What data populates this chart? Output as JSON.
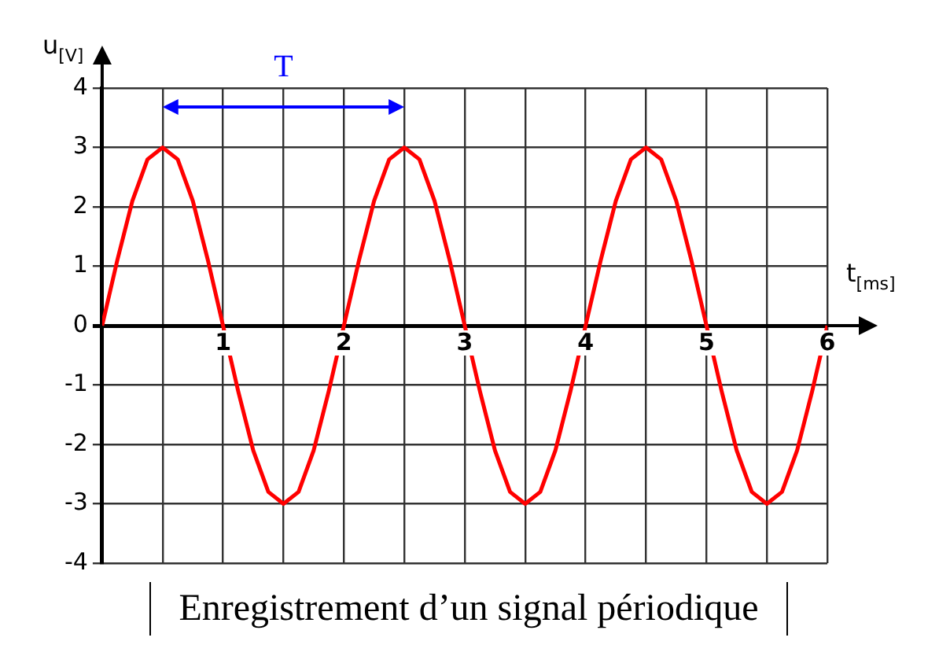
{
  "chart_data": {
    "type": "line",
    "xlabel": "t$_{[ms]}$",
    "ylabel": "u$_{[V]}$",
    "annotations": [
      "T",
      "Enregistrement d’un signal périodique"
    ],
    "x": [
      0,
      0.125,
      0.25,
      0.375,
      0.5,
      0.625,
      0.75,
      0.875,
      1,
      1.125,
      1.25,
      1.375,
      1.5,
      1.625,
      1.75,
      1.875,
      2,
      2.125,
      2.25,
      2.375,
      2.5,
      2.625,
      2.75,
      2.875,
      3,
      3.125,
      3.25,
      3.375,
      3.5,
      3.625,
      3.75,
      3.875,
      4,
      4.125,
      4.25,
      4.375,
      4.5,
      4.625,
      4.75,
      4.875,
      5,
      5.125,
      5.25,
      5.375,
      5.5,
      5.625,
      5.75,
      5.875,
      6
    ],
    "series": [
      {
        "color": "#ff0000",
        "values": [
          0,
          1.1,
          2.1,
          2.8,
          3,
          2.8,
          2.1,
          1.1,
          0,
          -1.1,
          -2.1,
          -2.8,
          -3,
          -2.8,
          -2.1,
          -1.1,
          0,
          1.1,
          2.1,
          2.8,
          3,
          2.8,
          2.1,
          1.1,
          0,
          -1.1,
          -2.1,
          -2.8,
          -3,
          -2.8,
          -2.1,
          -1.1,
          0,
          1.1,
          2.1,
          2.8,
          3,
          2.8,
          2.1,
          1.1,
          0,
          -1.1,
          -2.1,
          -2.8,
          -3,
          -2.8,
          -2.1,
          -1.1,
          0
        ]
      }
    ],
    "xlim": [
      0,
      6
    ],
    "ylim": [
      -4,
      4
    ],
    "xticks": [
      {
        "value": 0,
        "label": null
      },
      {
        "value": 0.5,
        "label": null
      },
      1,
      {
        "value": 1.5,
        "label": null
      },
      2,
      {
        "value": 2.5,
        "label": null
      },
      3,
      {
        "value": 3.5,
        "label": null
      },
      4,
      {
        "value": 4.5,
        "label": null
      },
      5,
      {
        "value": 5.5,
        "label": null
      },
      6
    ],
    "yticks": [
      -4,
      -3,
      -2,
      -1,
      0,
      1,
      2,
      3,
      4
    ],
    "grid": true,
    "legend": false,
    "marker": "none",
    "line_style": "solid"
  }
}
